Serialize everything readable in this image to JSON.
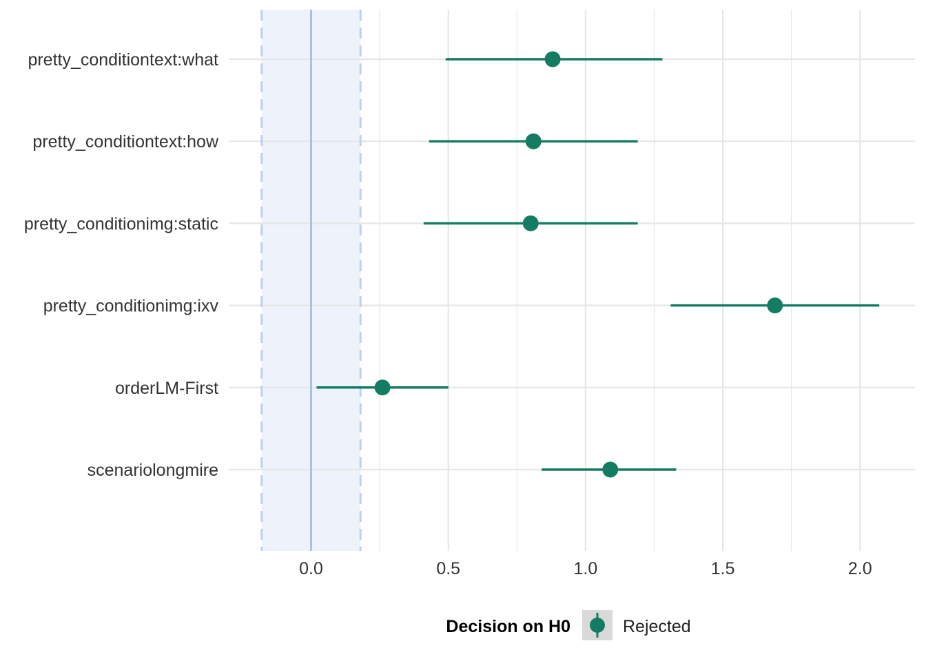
{
  "chart_data": {
    "type": "scatter",
    "subtype": "forest-plot-point-range",
    "title": "",
    "xlabel": "",
    "ylabel": "",
    "xlim": [
      -0.3,
      2.2
    ],
    "x_ticks": [
      0.0,
      0.5,
      1.0,
      1.5,
      2.0
    ],
    "x_tick_labels": [
      "0.0",
      "0.5",
      "1.0",
      "1.5",
      "2.0"
    ],
    "categories": [
      "pretty_conditiontext:what",
      "pretty_conditiontext:how",
      "pretty_conditionimg:static",
      "pretty_conditionimg:ixv",
      "orderLM-First",
      "scenariolongmire"
    ],
    "series": [
      {
        "name": "Rejected",
        "points": [
          {
            "label": "pretty_conditiontext:what",
            "estimate": 0.88,
            "low": 0.49,
            "high": 1.28
          },
          {
            "label": "pretty_conditiontext:how",
            "estimate": 0.81,
            "low": 0.43,
            "high": 1.19
          },
          {
            "label": "pretty_conditionimg:static",
            "estimate": 0.8,
            "low": 0.41,
            "high": 1.19
          },
          {
            "label": "pretty_conditionimg:ixv",
            "estimate": 1.69,
            "low": 1.31,
            "high": 2.07
          },
          {
            "label": "orderLM-First",
            "estimate": 0.26,
            "low": 0.02,
            "high": 0.5
          },
          {
            "label": "scenariolongmire",
            "estimate": 1.09,
            "low": 0.84,
            "high": 1.33
          }
        ]
      }
    ],
    "reference_line": 0,
    "rope": [
      -0.18,
      0.18
    ],
    "grid": true,
    "legend": {
      "title": "Decision on H0",
      "entries": [
        "Rejected"
      ],
      "placement": "bottom"
    },
    "colors": {
      "point": "#147c62",
      "rope_fill": "#eef3fb",
      "rope_edge": "#bcd1ee",
      "reference": "#a9c1e6",
      "grid": "#e6e6e6",
      "legend_key_bg": "#d9d9d9"
    }
  }
}
